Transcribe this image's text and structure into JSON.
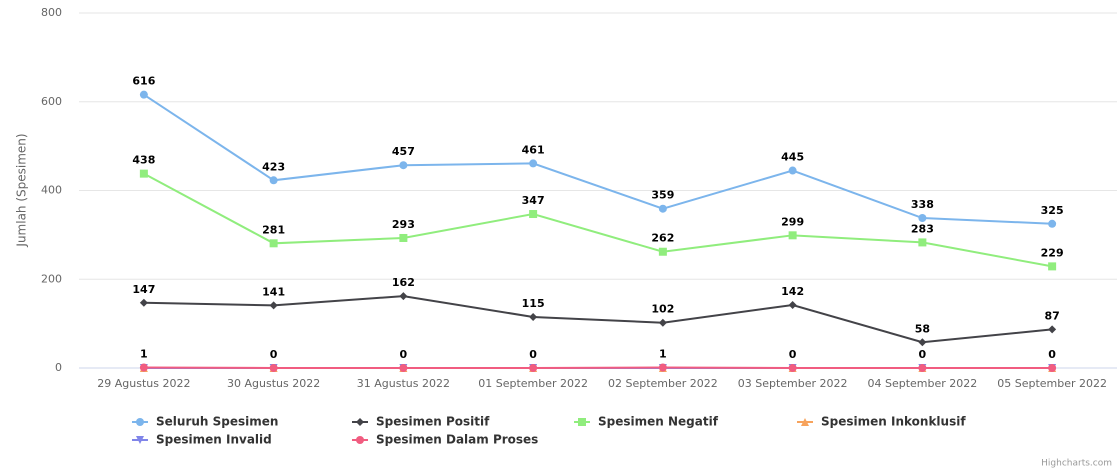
{
  "chart_data": {
    "type": "line",
    "y_label": "Jumlah (Spesimen)",
    "categories": [
      "29 Agustus 2022",
      "30 Agustus 2022",
      "31 Agustus 2022",
      "01 September 2022",
      "02 September 2022",
      "03 September 2022",
      "04 September 2022",
      "05 September 2022"
    ],
    "ylim": [
      0,
      800
    ],
    "yticks": [
      0,
      200,
      400,
      600,
      800
    ],
    "grid": true,
    "series": [
      {
        "name": "Seluruh Spesimen",
        "color": "#7cb5ec",
        "symbol": "circle",
        "data_labels": true,
        "values": [
          616,
          423,
          457,
          461,
          359,
          445,
          338,
          325
        ]
      },
      {
        "name": "Spesimen Positif",
        "color": "#434348",
        "symbol": "diamond",
        "data_labels": true,
        "values": [
          147,
          141,
          162,
          115,
          102,
          142,
          58,
          87
        ]
      },
      {
        "name": "Spesimen Negatif",
        "color": "#90ed7d",
        "symbol": "square",
        "data_labels": true,
        "values": [
          438,
          281,
          293,
          347,
          262,
          299,
          283,
          229
        ]
      },
      {
        "name": "Spesimen Inkonklusif",
        "color": "#f7a35c",
        "symbol": "triangle",
        "data_labels": false,
        "values": [
          0,
          0,
          0,
          0,
          0,
          0,
          0,
          0
        ]
      },
      {
        "name": "Spesimen Invalid",
        "color": "#8085e9",
        "symbol": "triangle-down",
        "data_labels": false,
        "values": [
          0,
          0,
          0,
          0,
          0,
          0,
          0,
          0
        ]
      },
      {
        "name": "Spesimen Dalam Proses",
        "color": "#f15c80",
        "symbol": "circle",
        "data_labels": true,
        "values": [
          1,
          0,
          0,
          0,
          1,
          0,
          0,
          0
        ]
      }
    ],
    "credits": "Highcharts.com"
  }
}
